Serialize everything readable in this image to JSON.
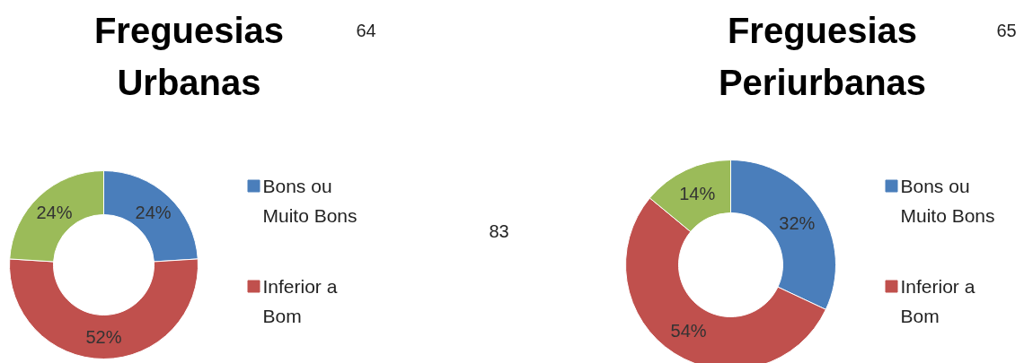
{
  "chart_data": [
    {
      "type": "donut",
      "title": "Freguesias Urbanas",
      "categories": [
        "Bons ou Muito Bons",
        "Inferior a Bom",
        null
      ],
      "values": [
        24,
        52,
        24
      ],
      "colors": [
        "#4a7ebb",
        "#c0504d",
        "#9bbb59"
      ],
      "value_labels": [
        "24%",
        "52%",
        "24%"
      ],
      "legend": "right",
      "annotations": [
        "64",
        "83"
      ]
    },
    {
      "type": "donut",
      "title": "Freguesias Periurbanas",
      "categories": [
        "Bons ou Muito Bons",
        "Inferior a Bom",
        null
      ],
      "values": [
        32,
        54,
        14
      ],
      "colors": [
        "#4a7ebb",
        "#c0504d",
        "#9bbb59"
      ],
      "value_labels": [
        "32%",
        "54%",
        "14%"
      ],
      "legend": "right",
      "annotations": [
        "65"
      ]
    }
  ]
}
